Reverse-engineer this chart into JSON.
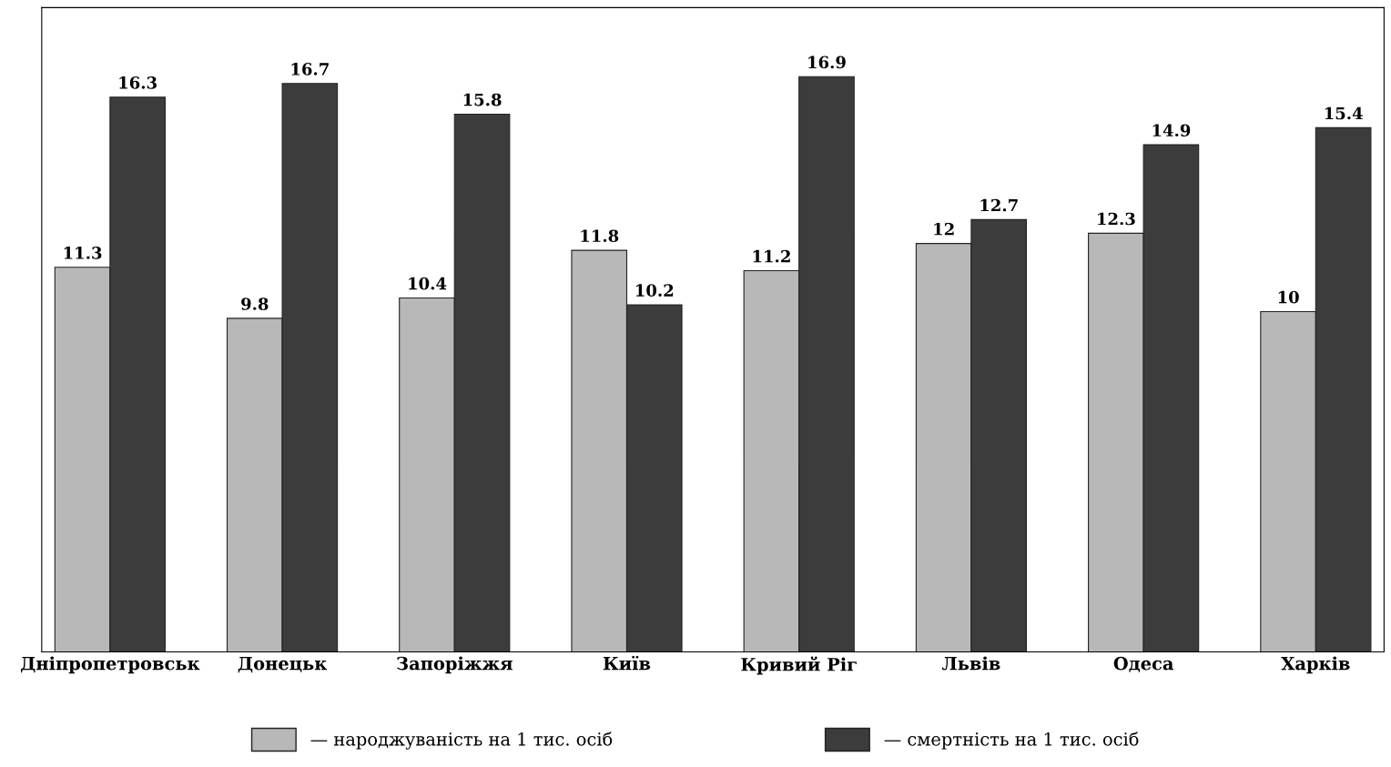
{
  "chart_data": {
    "type": "bar",
    "categories": [
      "Дніпропетровськ",
      "Донецьк",
      "Запоріжжя",
      "Київ",
      "Кривий Ріг",
      "Львів",
      "Одеса",
      "Харків"
    ],
    "series": [
      {
        "name": "— народжуваність на 1 тис. осіб",
        "color": "#b8b8b8",
        "values": [
          11.3,
          9.8,
          10.4,
          11.8,
          11.2,
          12,
          12.3,
          10
        ],
        "value_labels": [
          "11.3",
          "9.8",
          "10.4",
          "11.8",
          "11.2",
          "12",
          "12.3",
          "10"
        ]
      },
      {
        "name": "— смертність на 1 тис. осіб",
        "color": "#3c3c3c",
        "values": [
          16.3,
          16.7,
          15.8,
          10.2,
          16.9,
          12.7,
          14.9,
          15.4
        ],
        "value_labels": [
          "16.3",
          "16.7",
          "15.8",
          "10.2",
          "16.9",
          "12.7",
          "14.9",
          "15.4"
        ]
      }
    ],
    "tick_labels": "x",
    "grid": false,
    "legend": "bottom"
  }
}
